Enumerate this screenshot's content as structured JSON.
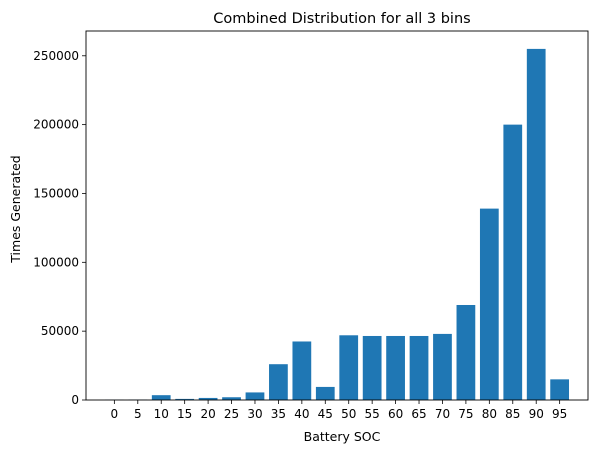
{
  "chart_data": {
    "type": "bar",
    "title": "Combined Distribution for all 3 bins",
    "xlabel": "Battery SOC",
    "ylabel": "Times Generated",
    "categories": [
      "0",
      "5",
      "10",
      "15",
      "20",
      "25",
      "30",
      "35",
      "40",
      "45",
      "50",
      "55",
      "60",
      "65",
      "70",
      "75",
      "80",
      "85",
      "90",
      "95"
    ],
    "values": [
      200,
      300,
      3500,
      800,
      1500,
      2000,
      5500,
      26000,
      42500,
      9500,
      47000,
      46500,
      46500,
      46500,
      48000,
      69000,
      139000,
      200000,
      255000,
      15000
    ],
    "ylim": [
      0,
      268000
    ],
    "yticks": [
      0,
      50000,
      100000,
      150000,
      200000,
      250000
    ],
    "ytick_labels": [
      "0",
      "50000",
      "100000",
      "150000",
      "200000",
      "250000"
    ],
    "bar_color": "#1f77b4",
    "grid": false,
    "legend": "none"
  }
}
